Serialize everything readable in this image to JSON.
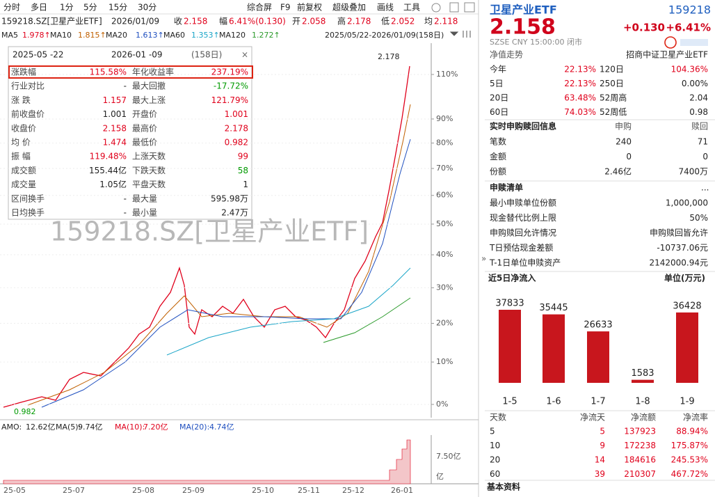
{
  "toolbar": {
    "periods": [
      "分时",
      "多日",
      "1分",
      "5分",
      "15分",
      "30分"
    ],
    "tools": [
      "综合屏",
      "F9",
      "前复权",
      "超级叠加",
      "画线",
      "工具"
    ]
  },
  "quote_line": {
    "code": "159218.SZ[卫星产业ETF]",
    "date": "2026/01/09",
    "items": [
      {
        "label": "收",
        "value": "2.158"
      },
      {
        "label": "幅",
        "value": "6.41%(0.130)"
      },
      {
        "label": "开",
        "value": "2.058"
      },
      {
        "label": "高",
        "value": "2.178"
      },
      {
        "label": "低",
        "value": "2.052"
      },
      {
        "label": "均",
        "value": "2.118"
      }
    ]
  },
  "ma_line": {
    "items": [
      {
        "label": "MA5",
        "value": "1.978↑",
        "color": "#e0001b"
      },
      {
        "label": "MA10",
        "value": "1.815↑",
        "color": "#c06000"
      },
      {
        "label": "MA20",
        "value": "1.613↑",
        "color": "#1f4fbf"
      },
      {
        "label": "MA60",
        "value": "1.353↑",
        "color": "#1aa5c8"
      },
      {
        "label": "MA120",
        "value": "1.272↑",
        "color": "#2a9a2a"
      }
    ],
    "range": "2025/05/22-2026/01/09(158日)"
  },
  "interval_panel": {
    "start": "2025-05 -22",
    "end": "2026-01 -09",
    "days": "(158日)",
    "rows": [
      [
        "涨跌幅",
        "115.58%",
        "年化收益率",
        "237.19%"
      ],
      [
        "行业对比",
        "-",
        "最大回撤",
        "-17.72%"
      ],
      [
        "涨  跌",
        "1.157",
        "最大上涨",
        "121.79%"
      ],
      [
        "前收盘价",
        "1.001",
        "开盘价",
        "1.001"
      ],
      [
        "收盘价",
        "2.158",
        "最高价",
        "2.178"
      ],
      [
        "均  价",
        "1.474",
        "最低价",
        "0.982"
      ],
      [
        "振  幅",
        "119.48%",
        "上涨天数",
        "99"
      ],
      [
        "成交额",
        "155.44亿",
        "下跌天数",
        "58"
      ],
      [
        "成交量",
        "1.05亿",
        "平盘天数",
        "1"
      ],
      [
        "区间换手",
        "-",
        "最大量",
        "595.98万"
      ],
      [
        "日均换手",
        "-",
        "最小量",
        "2.47万"
      ]
    ]
  },
  "watermark": "159218.SZ[卫星产业ETF]",
  "price_chart": {
    "high_label": "2.178",
    "low_label": "0.982",
    "yticks": [
      {
        "value": 110,
        "label": "110%"
      },
      {
        "value": 90,
        "label": "90%"
      },
      {
        "value": 80,
        "label": "80%"
      },
      {
        "value": 70,
        "label": "70%"
      },
      {
        "value": 60,
        "label": "60%"
      },
      {
        "value": 50,
        "label": "50%"
      },
      {
        "value": 40,
        "label": "40%"
      },
      {
        "value": 30,
        "label": "30%"
      },
      {
        "value": 20,
        "label": "20%"
      },
      {
        "value": 10,
        "label": "10%"
      },
      {
        "value": 0,
        "label": "0%"
      }
    ],
    "xticks": [
      "25-05",
      "25-07",
      "25-08",
      "25-09",
      "25-10",
      "25-11",
      "25-12",
      "26-01"
    ]
  },
  "volume": {
    "items": [
      {
        "label": "AMO:",
        "value": "12.62亿",
        "color": "#222222"
      },
      {
        "label": "MA(5):",
        "value": "9.74亿",
        "color": "#222222"
      },
      {
        "label": "MA(10):",
        "value": "7.20亿",
        "color": "#e0001b"
      },
      {
        "label": "MA(20):",
        "value": "4.74亿",
        "color": "#1f4fbf"
      }
    ],
    "ticks": [
      "7.50亿",
      "亿"
    ]
  },
  "header": {
    "name": "卫星产业ETF",
    "code": "159218",
    "price": "2.158",
    "change": "+0.130",
    "pct": "+6.41%",
    "meta": "SZSE  CNY  15:00:00  闭市"
  },
  "nav": {
    "label": "净值走势",
    "index": "招商中证卫星产业ETF"
  },
  "returns": [
    [
      "今年",
      "22.13%",
      "120日",
      "104.36%"
    ],
    [
      "5日",
      "22.13%",
      "250日",
      "0.00%"
    ],
    [
      "20日",
      "63.48%",
      "52周高",
      "2.04"
    ],
    [
      "60日",
      "74.03%",
      "52周低",
      "0.98"
    ]
  ],
  "subscription": {
    "title": "实时申购赎回信息",
    "columns": [
      "申购",
      "赎回"
    ],
    "rows": [
      [
        "笔数",
        "240",
        "71"
      ],
      [
        "金额",
        "0",
        "0"
      ],
      [
        "份额",
        "2.46亿",
        "7400万"
      ]
    ]
  },
  "basket": {
    "title": "申赎清单",
    "more": "...",
    "rows": [
      [
        "最小申赎单位份额",
        "1,000,000"
      ],
      [
        "现金替代比例上限",
        "50%"
      ],
      [
        "申购赎回允许情况",
        "申购赎回皆允许"
      ],
      [
        "T日预估现金差额",
        "-10737.06元"
      ],
      [
        "T-1日单位申赎资产",
        "2142000.94元"
      ]
    ]
  },
  "net_inflow": {
    "title": "近5日净流入",
    "unit": "单位(万元)",
    "categories": [
      "1-5",
      "1-6",
      "1-7",
      "1-8",
      "1-9"
    ],
    "values": [
      37833,
      35445,
      26633,
      1583,
      36428
    ],
    "color": "#c8161d"
  },
  "flow_table": {
    "columns": [
      "天数",
      "净流天",
      "净流额",
      "净流率"
    ],
    "rows": [
      [
        "5",
        "5",
        "137923",
        "88.94%"
      ],
      [
        "10",
        "9",
        "172238",
        "175.87%"
      ],
      [
        "20",
        "14",
        "184616",
        "245.53%"
      ],
      [
        "60",
        "39",
        "210307",
        "467.72%"
      ]
    ]
  },
  "footer": "基本资料"
}
